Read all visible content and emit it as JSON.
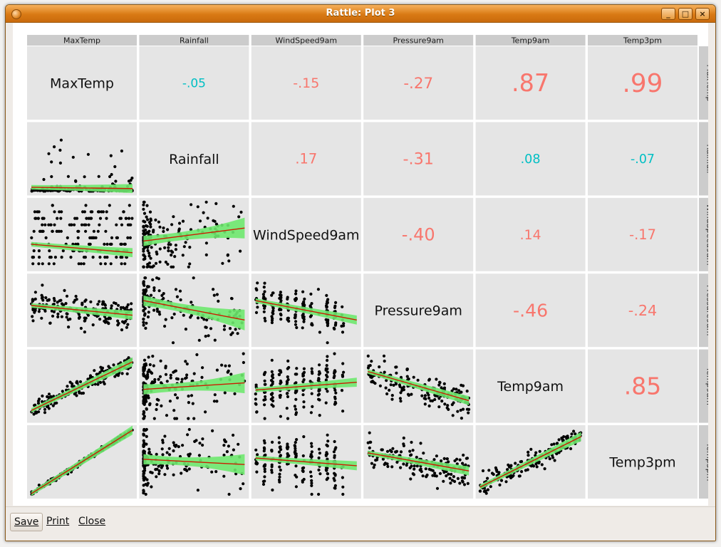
{
  "window": {
    "title": "Rattle: Plot 3"
  },
  "footer": {
    "save_label": "Save",
    "print_label": "Print",
    "close_label": "Close"
  },
  "chart_data": {
    "type": "scatter-matrix",
    "variables": [
      "MaxTemp",
      "Rainfall",
      "WindSpeed9am",
      "Pressure9am",
      "Temp9am",
      "Temp3pm"
    ],
    "correlations": [
      {
        "row": "MaxTemp",
        "col": "Rainfall",
        "label": "-.05"
      },
      {
        "row": "MaxTemp",
        "col": "WindSpeed9am",
        "label": "-.15"
      },
      {
        "row": "MaxTemp",
        "col": "Pressure9am",
        "label": "-.27"
      },
      {
        "row": "MaxTemp",
        "col": "Temp9am",
        "label": ".87"
      },
      {
        "row": "MaxTemp",
        "col": "Temp3pm",
        "label": ".99"
      },
      {
        "row": "Rainfall",
        "col": "WindSpeed9am",
        "label": ".17"
      },
      {
        "row": "Rainfall",
        "col": "Pressure9am",
        "label": "-.31"
      },
      {
        "row": "Rainfall",
        "col": "Temp9am",
        "label": ".08"
      },
      {
        "row": "Rainfall",
        "col": "Temp3pm",
        "label": "-.07"
      },
      {
        "row": "WindSpeed9am",
        "col": "Pressure9am",
        "label": "-.40"
      },
      {
        "row": "WindSpeed9am",
        "col": "Temp9am",
        "label": ".14"
      },
      {
        "row": "WindSpeed9am",
        "col": "Temp3pm",
        "label": "-.17"
      },
      {
        "row": "Pressure9am",
        "col": "Temp9am",
        "label": "-.46"
      },
      {
        "row": "Pressure9am",
        "col": "Temp3pm",
        "label": "-.24"
      },
      {
        "row": "Temp9am",
        "col": "Temp3pm",
        "label": ".85"
      }
    ],
    "colors": {
      "positive": "#f8766d",
      "negative": "#00bfc4",
      "fit_line": "#cc1a00",
      "confidence_band": "#6ee86e",
      "panel_bg": "#e5e5e5",
      "strip_bg": "#cccccc",
      "points": "#000000"
    }
  }
}
